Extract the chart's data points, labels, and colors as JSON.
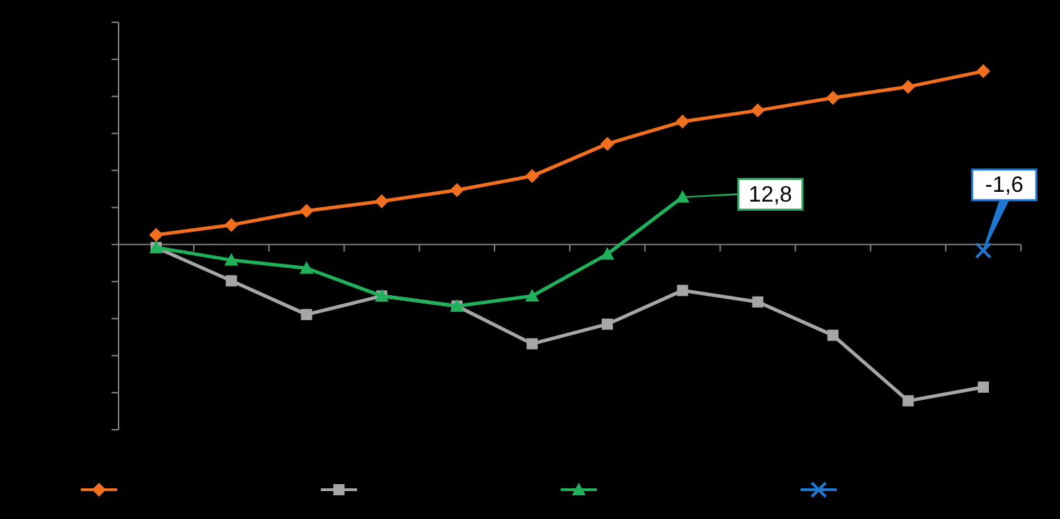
{
  "chart_data": {
    "type": "line",
    "categories": [
      null,
      null,
      null,
      null,
      null,
      null,
      null,
      null,
      null,
      null,
      null,
      null
    ],
    "ylim": [
      -50,
      60
    ],
    "yticks": [
      {
        "value": -50,
        "label": null
      },
      {
        "value": -40,
        "label": null
      },
      {
        "value": -30,
        "label": null
      },
      {
        "value": -20,
        "label": null
      },
      {
        "value": -10,
        "label": null
      },
      {
        "value": 0,
        "label": null
      },
      {
        "value": 10,
        "label": null
      },
      {
        "value": 20,
        "label": null
      },
      {
        "value": 30,
        "label": null
      },
      {
        "value": 40,
        "label": null
      },
      {
        "value": 50,
        "label": null
      },
      {
        "value": 60,
        "label": null
      }
    ],
    "series": [
      {
        "color": "#f26f1e",
        "marker": "diamond",
        "values": [
          2.6,
          5.3,
          9.1,
          11.7,
          14.7,
          18.5,
          27.2,
          33.2,
          36.2,
          39.6,
          42.6,
          46.8
        ]
      },
      {
        "color": "#a6a6a6",
        "marker": "square",
        "values": [
          -0.8,
          -9.8,
          -18.9,
          -13.9,
          -16.6,
          -26.8,
          -21.5,
          -12.4,
          -15.5,
          -24.5,
          -42.2,
          -38.5
        ]
      },
      {
        "color": "#1fb25a",
        "marker": "triangle",
        "values": [
          -0.8,
          -4.2,
          -6.4,
          -13.9,
          -16.6,
          -13.9,
          -2.6,
          12.8,
          null,
          null,
          null,
          null
        ],
        "value_labels": [
          null,
          null,
          null,
          null,
          null,
          null,
          null,
          "12,8",
          null,
          null,
          null,
          null
        ]
      },
      {
        "color": "#1f78d1",
        "marker": "cross",
        "values": [
          null,
          null,
          null,
          null,
          null,
          null,
          null,
          null,
          null,
          null,
          null,
          -1.6
        ],
        "value_labels": [
          null,
          null,
          null,
          null,
          null,
          null,
          null,
          null,
          null,
          null,
          null,
          "-1,6"
        ]
      }
    ]
  }
}
